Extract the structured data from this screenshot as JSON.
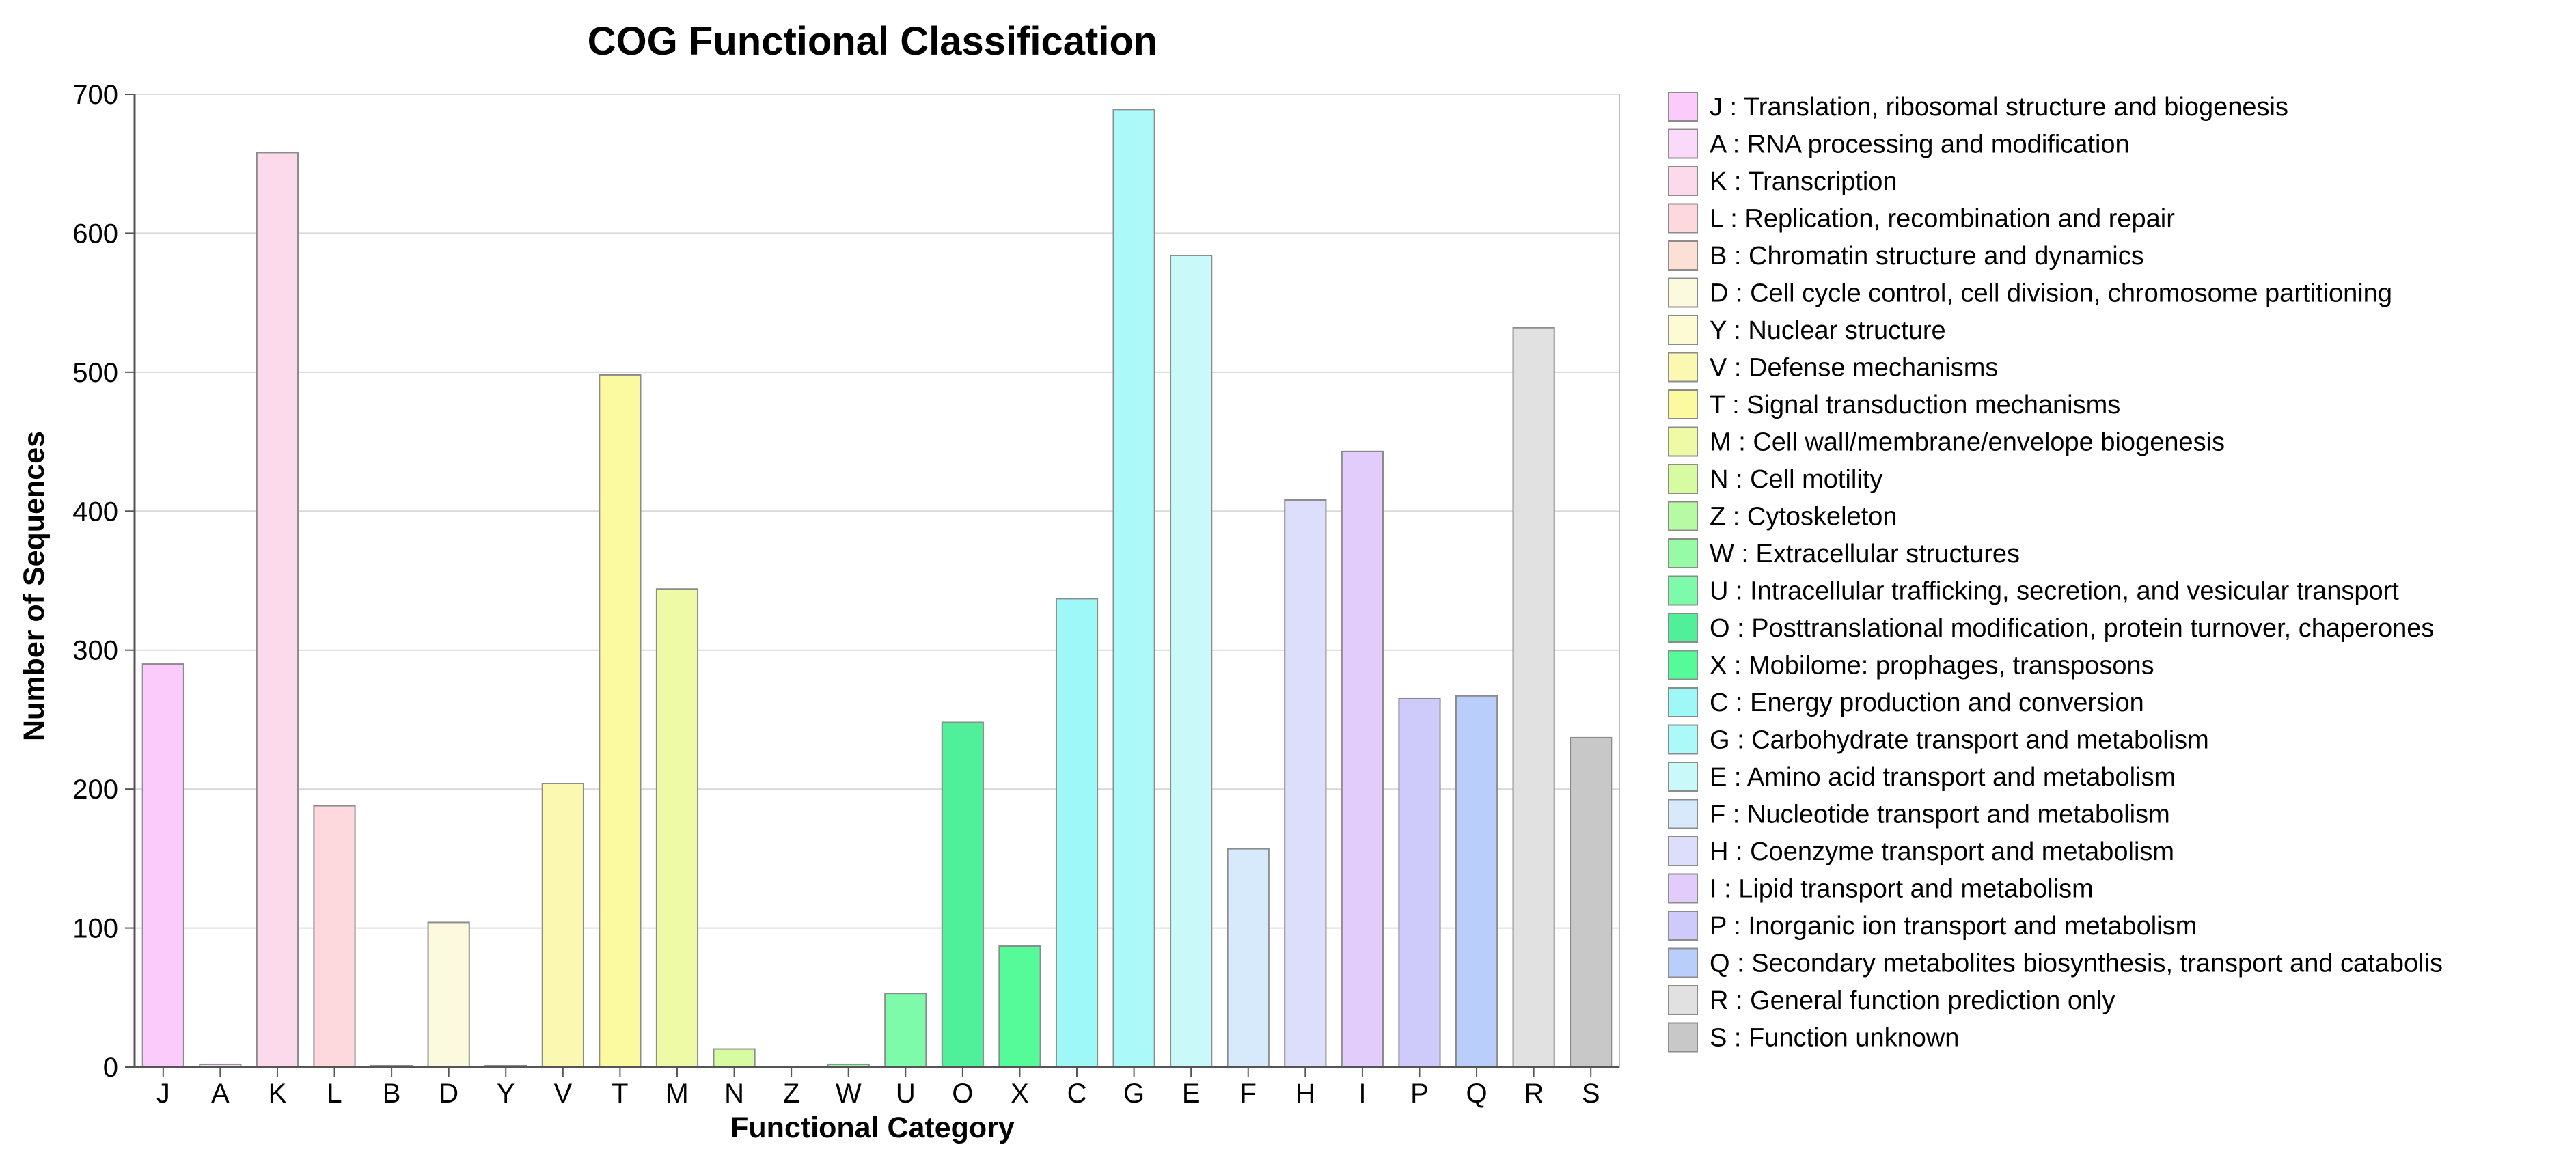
{
  "chart_data": {
    "type": "bar",
    "title": "COG Functional Classification",
    "xlabel": "Functional Category",
    "ylabel": "Number of Sequences",
    "ylim": [
      0,
      700
    ],
    "yticks": [
      0,
      100,
      200,
      300,
      400,
      500,
      600,
      700
    ],
    "grid": true,
    "legend_position": "right",
    "categories": [
      "J",
      "A",
      "K",
      "L",
      "B",
      "D",
      "Y",
      "V",
      "T",
      "M",
      "N",
      "Z",
      "W",
      "U",
      "O",
      "X",
      "C",
      "G",
      "E",
      "F",
      "H",
      "I",
      "P",
      "Q",
      "R",
      "S"
    ],
    "values": [
      290,
      2,
      658,
      188,
      1,
      104,
      1,
      204,
      498,
      344,
      13,
      0,
      2,
      53,
      248,
      87,
      337,
      689,
      584,
      157,
      408,
      443,
      265,
      267,
      532,
      237
    ],
    "colors": [
      "#FBCBFB",
      "#FBD9FB",
      "#FCD9EB",
      "#FDD9DD",
      "#FDE0D5",
      "#FBF9DE",
      "#FDFBD3",
      "#FBF9B1",
      "#FCFAA0",
      "#EFFAA6",
      "#D7FBA1",
      "#B6FBA3",
      "#97FBA5",
      "#7DFBAB",
      "#50EF99",
      "#55FB99",
      "#9EF8F8",
      "#ABFAF9",
      "#CAF9F9",
      "#D6EAFC",
      "#DCDEFB",
      "#E1CCFB",
      "#CECBFA",
      "#B9CEFB",
      "#E1E1E1",
      "#C8C8C8"
    ],
    "legend": [
      "J : Translation, ribosomal structure and biogenesis",
      "A : RNA processing and modification",
      "K : Transcription",
      "L : Replication, recombination and repair",
      "B : Chromatin structure and dynamics",
      "D : Cell cycle control, cell division, chromosome partitioning",
      "Y : Nuclear structure",
      "V : Defense mechanisms",
      "T : Signal transduction mechanisms",
      "M : Cell wall/membrane/envelope biogenesis",
      "N : Cell motility",
      "Z : Cytoskeleton",
      "W : Extracellular structures",
      "U : Intracellular trafficking, secretion, and vesicular transport",
      "O : Posttranslational modification, protein turnover, chaperones",
      "X : Mobilome: prophages, transposons",
      "C : Energy production and conversion",
      "G : Carbohydrate transport and metabolism",
      "E : Amino acid transport and metabolism",
      "F : Nucleotide transport and metabolism",
      "H : Coenzyme transport and metabolism",
      "I : Lipid transport and metabolism",
      "P : Inorganic ion transport and metabolism",
      "Q : Secondary metabolites biosynthesis, transport and catabolis",
      "R : General function prediction only",
      "S : Function unknown"
    ]
  }
}
